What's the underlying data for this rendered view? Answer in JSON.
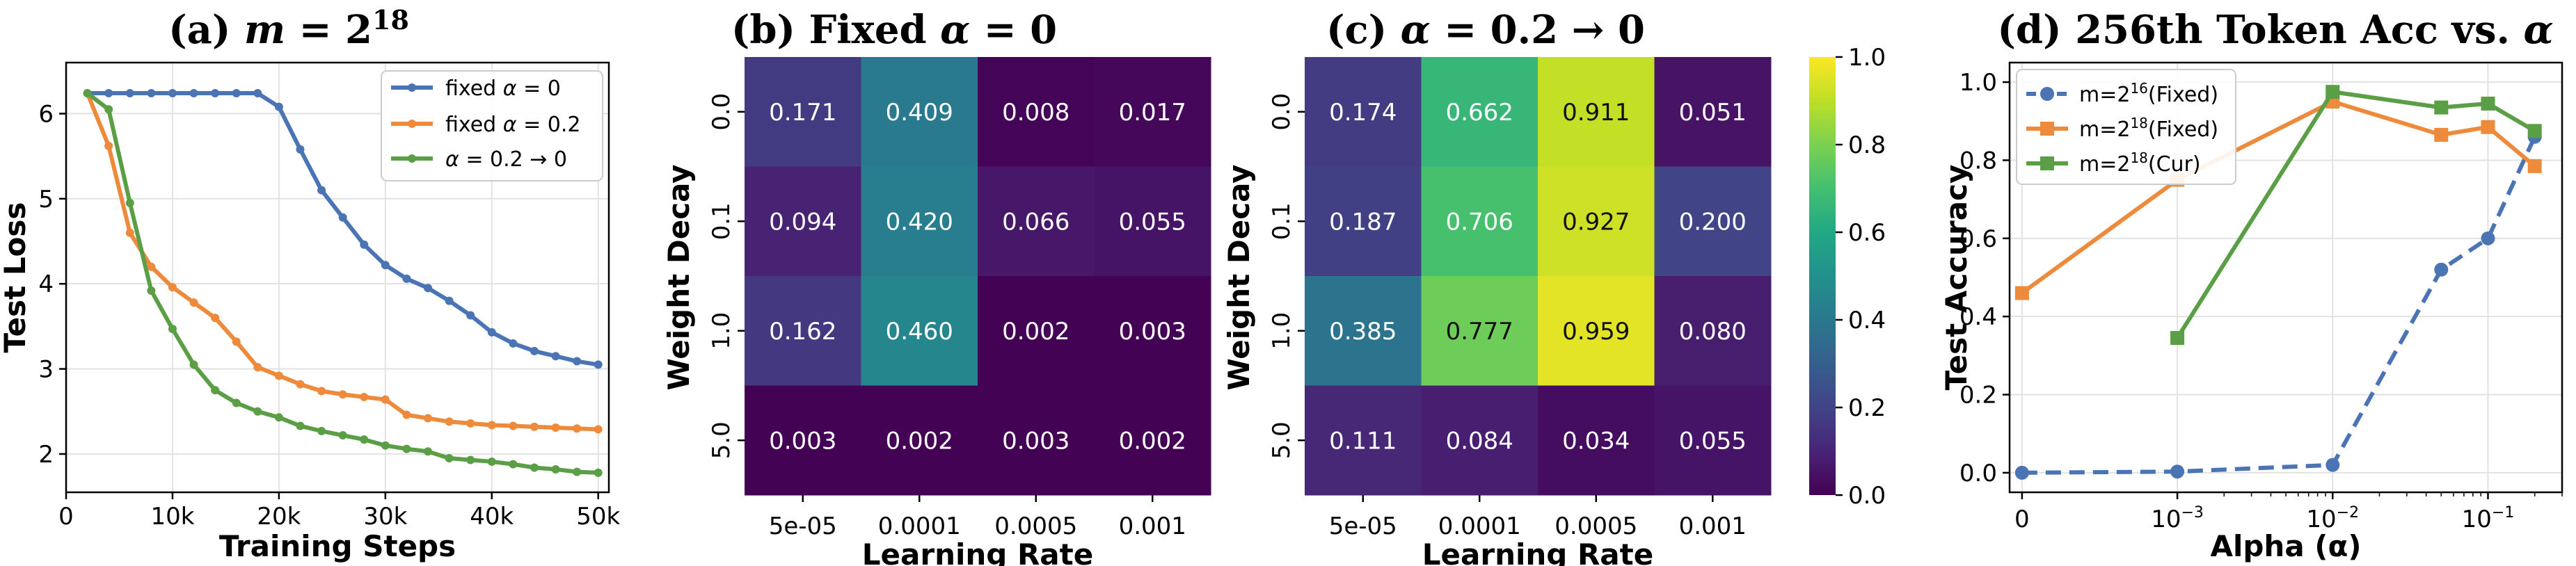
{
  "chart_data": [
    {
      "type": "line",
      "panel": "a",
      "title": "(a) m = 2^18",
      "title_parts": {
        "prefix": "(a) ",
        "var": "m",
        "eq": " = 2",
        "sup": "18"
      },
      "xlabel": "Training Steps",
      "ylabel": "Test Loss",
      "xlim": [
        0,
        51000
      ],
      "ylim": [
        1.55,
        6.6
      ],
      "xticks": [
        0,
        10000,
        20000,
        30000,
        40000,
        50000
      ],
      "xtick_labels": [
        "0",
        "10k",
        "20k",
        "30k",
        "40k",
        "50k"
      ],
      "yticks": [
        2,
        3,
        4,
        5,
        6
      ],
      "ytick_labels": [
        "2",
        "3",
        "4",
        "5",
        "6"
      ],
      "grid": true,
      "legend_position": "top-right",
      "series": [
        {
          "name": "fixed α = 0",
          "name_parts": [
            "fixed ",
            "α",
            " = 0"
          ],
          "color": "#4a74b4",
          "x": [
            2000,
            4000,
            6000,
            8000,
            10000,
            12000,
            14000,
            16000,
            18000,
            20000,
            22000,
            24000,
            26000,
            28000,
            30000,
            32000,
            34000,
            36000,
            38000,
            40000,
            42000,
            44000,
            46000,
            48000,
            50000
          ],
          "y": [
            6.24,
            6.24,
            6.24,
            6.24,
            6.24,
            6.24,
            6.24,
            6.24,
            6.24,
            6.08,
            5.58,
            5.1,
            4.78,
            4.46,
            4.22,
            4.06,
            3.95,
            3.8,
            3.63,
            3.43,
            3.3,
            3.21,
            3.15,
            3.09,
            3.05
          ]
        },
        {
          "name": "fixed α = 0.2",
          "name_parts": [
            "fixed ",
            "α",
            " = 0.2"
          ],
          "color": "#ee8a3c",
          "x": [
            2000,
            4000,
            6000,
            8000,
            10000,
            12000,
            14000,
            16000,
            18000,
            20000,
            22000,
            24000,
            26000,
            28000,
            30000,
            32000,
            34000,
            36000,
            38000,
            40000,
            42000,
            44000,
            46000,
            48000,
            50000
          ],
          "y": [
            6.24,
            5.62,
            4.6,
            4.2,
            3.96,
            3.78,
            3.6,
            3.32,
            3.02,
            2.92,
            2.82,
            2.74,
            2.7,
            2.67,
            2.64,
            2.46,
            2.42,
            2.38,
            2.36,
            2.34,
            2.33,
            2.32,
            2.31,
            2.3,
            2.29
          ]
        },
        {
          "name": "α = 0.2 → 0",
          "name_parts": [
            "",
            "α",
            " = 0.2 → 0"
          ],
          "color": "#5a9e46",
          "x": [
            2000,
            4000,
            6000,
            8000,
            10000,
            12000,
            14000,
            16000,
            18000,
            20000,
            22000,
            24000,
            26000,
            28000,
            30000,
            32000,
            34000,
            36000,
            38000,
            40000,
            42000,
            44000,
            46000,
            48000,
            50000
          ],
          "y": [
            6.24,
            6.05,
            4.95,
            3.92,
            3.47,
            3.05,
            2.75,
            2.6,
            2.5,
            2.43,
            2.33,
            2.27,
            2.22,
            2.17,
            2.1,
            2.06,
            2.03,
            1.95,
            1.93,
            1.91,
            1.88,
            1.84,
            1.82,
            1.79,
            1.78
          ]
        }
      ]
    },
    {
      "type": "heatmap",
      "panel": "b",
      "title": "(b) Fixed α = 0",
      "title_parts": {
        "prefix": "(b) Fixed ",
        "var": "α",
        "eq": " = 0"
      },
      "xlabel": "Learning Rate",
      "ylabel": "Weight Decay",
      "x_categories": [
        "5e-05",
        "0.0001",
        "0.0005",
        "0.001"
      ],
      "y_categories": [
        "0.0",
        "0.1",
        "1.0",
        "5.0"
      ],
      "values": [
        [
          0.171,
          0.409,
          0.008,
          0.017
        ],
        [
          0.094,
          0.42,
          0.066,
          0.055
        ],
        [
          0.162,
          0.46,
          0.002,
          0.003
        ],
        [
          0.003,
          0.002,
          0.003,
          0.002
        ]
      ],
      "value_labels": [
        [
          "0.171",
          "0.409",
          "0.008",
          "0.017"
        ],
        [
          "0.094",
          "0.420",
          "0.066",
          "0.055"
        ],
        [
          "0.162",
          "0.460",
          "0.002",
          "0.003"
        ],
        [
          "0.003",
          "0.002",
          "0.003",
          "0.002"
        ]
      ],
      "colormap": "viridis",
      "vmin": 0,
      "vmax": 1
    },
    {
      "type": "heatmap",
      "panel": "c",
      "title": "(c) α = 0.2 → 0",
      "title_parts": {
        "prefix": "(c) ",
        "var": "α",
        "eq": " = 0.2 → 0"
      },
      "xlabel": "Learning Rate",
      "ylabel": "Weight Decay",
      "x_categories": [
        "5e-05",
        "0.0001",
        "0.0005",
        "0.001"
      ],
      "y_categories": [
        "0.0",
        "0.1",
        "1.0",
        "5.0"
      ],
      "values": [
        [
          0.174,
          0.662,
          0.911,
          0.051
        ],
        [
          0.187,
          0.706,
          0.927,
          0.2
        ],
        [
          0.385,
          0.777,
          0.959,
          0.08
        ],
        [
          0.111,
          0.084,
          0.034,
          0.055
        ]
      ],
      "value_labels": [
        [
          "0.174",
          "0.662",
          "0.911",
          "0.051"
        ],
        [
          "0.187",
          "0.706",
          "0.927",
          "0.200"
        ],
        [
          "0.385",
          "0.777",
          "0.959",
          "0.080"
        ],
        [
          "0.111",
          "0.084",
          "0.034",
          "0.055"
        ]
      ],
      "colormap": "viridis",
      "vmin": 0,
      "vmax": 1,
      "colorbar_ticks": [
        0,
        0.2,
        0.4,
        0.6,
        0.8,
        1.0
      ],
      "colorbar_tick_labels": [
        "0.0",
        "0.2",
        "0.4",
        "0.6",
        "0.8",
        "1.0"
      ]
    },
    {
      "type": "line",
      "panel": "d",
      "title": "(d) 256th Token Acc vs. α",
      "title_parts": {
        "prefix": "(d) 256th Token Acc vs. ",
        "var": "α",
        "eq": ""
      },
      "xlabel": "Alpha (α)",
      "ylabel": "Test Accuracy",
      "xscale": "symlog",
      "xlim": [
        -8e-05,
        0.3
      ],
      "ylim": [
        -0.05,
        1.05
      ],
      "xticks": [
        0,
        0.001,
        0.01,
        0.1
      ],
      "xtick_labels": [
        {
          "base": "0",
          "sup": ""
        },
        {
          "base": "10",
          "sup": "−3"
        },
        {
          "base": "10",
          "sup": "−2"
        },
        {
          "base": "10",
          "sup": "−1"
        }
      ],
      "yticks": [
        0,
        0.2,
        0.4,
        0.6,
        0.8,
        1.0
      ],
      "ytick_labels": [
        "0.0",
        "0.2",
        "0.4",
        "0.6",
        "0.8",
        "1.0"
      ],
      "grid": true,
      "legend_position": "top-left",
      "series": [
        {
          "name": "m=2^16(Fixed)",
          "name_parts": [
            "m=2",
            "16",
            "(Fixed)"
          ],
          "color": "#4a74b4",
          "marker": "circle",
          "linestyle": "dashed",
          "x": [
            0,
            0.001,
            0.01,
            0.05,
            0.1,
            0.2
          ],
          "y": [
            0.0,
            0.003,
            0.02,
            0.52,
            0.6,
            0.86
          ]
        },
        {
          "name": "m=2^18(Fixed)",
          "name_parts": [
            "m=2",
            "18",
            "(Fixed)"
          ],
          "color": "#ee8a3c",
          "marker": "square",
          "linestyle": "solid",
          "x": [
            0,
            0.001,
            0.01,
            0.05,
            0.1,
            0.2
          ],
          "y": [
            0.46,
            0.75,
            0.95,
            0.865,
            0.885,
            0.785
          ]
        },
        {
          "name": "m=2^18(Cur)",
          "name_parts": [
            "m=2",
            "18",
            "(Cur)"
          ],
          "color": "#5a9e46",
          "marker": "square",
          "linestyle": "solid",
          "x": [
            0.001,
            0.01,
            0.05,
            0.1,
            0.2
          ],
          "y": [
            0.345,
            0.975,
            0.935,
            0.945,
            0.875
          ]
        }
      ]
    }
  ]
}
